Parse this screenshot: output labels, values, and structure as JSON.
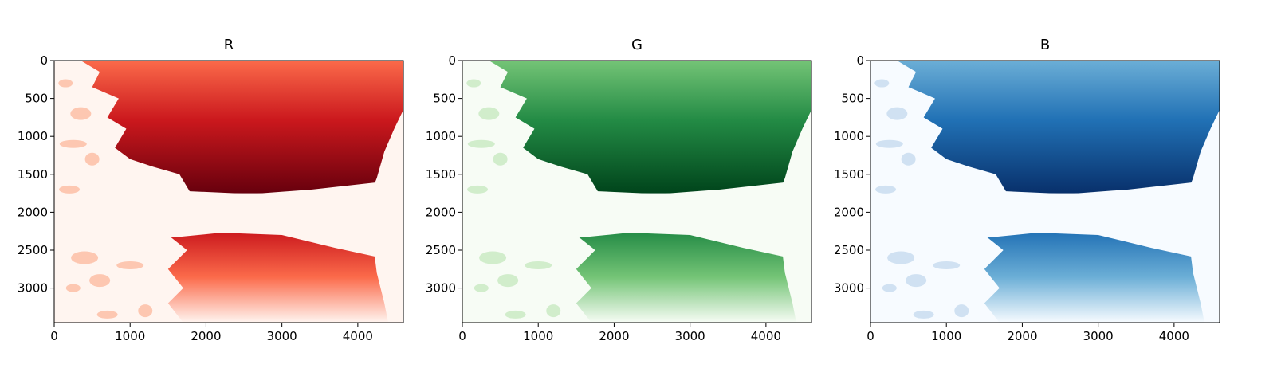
{
  "chart_data": [
    {
      "type": "heatmap",
      "title": "R",
      "colormap": "Reds",
      "colors": [
        "#fff5f0",
        "#fcbba1",
        "#fb6a4a",
        "#cb181d",
        "#67000d"
      ],
      "xlim": [
        0,
        4600
      ],
      "ylim": [
        3456,
        0
      ],
      "xticks": [
        0,
        1000,
        2000,
        3000,
        4000
      ],
      "yticks": [
        0,
        500,
        1000,
        1500,
        2000,
        2500,
        3000
      ],
      "xtick_labels": [
        "0",
        "1000",
        "2000",
        "3000",
        "4000"
      ],
      "ytick_labels": [
        "0",
        "500",
        "1000",
        "1500",
        "2000",
        "2500",
        "3000"
      ]
    },
    {
      "type": "heatmap",
      "title": "G",
      "colormap": "Greens",
      "colors": [
        "#f7fcf5",
        "#c7e9c0",
        "#74c476",
        "#238b45",
        "#00441b"
      ],
      "xlim": [
        0,
        4600
      ],
      "ylim": [
        3456,
        0
      ],
      "xticks": [
        0,
        1000,
        2000,
        3000,
        4000
      ],
      "yticks": [
        0,
        500,
        1000,
        1500,
        2000,
        2500,
        3000
      ],
      "xtick_labels": [
        "0",
        "1000",
        "2000",
        "3000",
        "4000"
      ],
      "ytick_labels": [
        "0",
        "500",
        "1000",
        "1500",
        "2000",
        "2500",
        "3000"
      ]
    },
    {
      "type": "heatmap",
      "title": "B",
      "colormap": "Blues",
      "colors": [
        "#f7fbff",
        "#c6dbef",
        "#6baed6",
        "#2171b5",
        "#08306b"
      ],
      "xlim": [
        0,
        4600
      ],
      "ylim": [
        3456,
        0
      ],
      "xticks": [
        0,
        1000,
        2000,
        3000,
        4000
      ],
      "yticks": [
        0,
        500,
        1000,
        1500,
        2000,
        2500,
        3000
      ],
      "xtick_labels": [
        "0",
        "1000",
        "2000",
        "3000",
        "4000"
      ],
      "ytick_labels": [
        "0",
        "500",
        "1000",
        "1500",
        "2000",
        "2500",
        "3000"
      ]
    }
  ]
}
